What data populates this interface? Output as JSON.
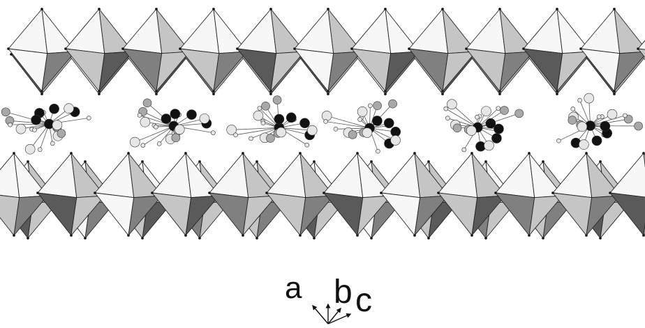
{
  "figure": {
    "axes": [
      {
        "id": "a",
        "label": "a"
      },
      {
        "id": "b",
        "label": "b"
      },
      {
        "id": "c",
        "label": "c"
      }
    ]
  },
  "palette": {
    "background": "#ffffff",
    "light_face": "#f7f7f7",
    "mid_face": "#c5c5c5",
    "dark_face": "#808080",
    "deep_face": "#5a5a5a",
    "edge": "#222222",
    "atom_black": "#111111",
    "atom_gray": "#a8a8a8",
    "atom_light": "#e6e6e6"
  }
}
